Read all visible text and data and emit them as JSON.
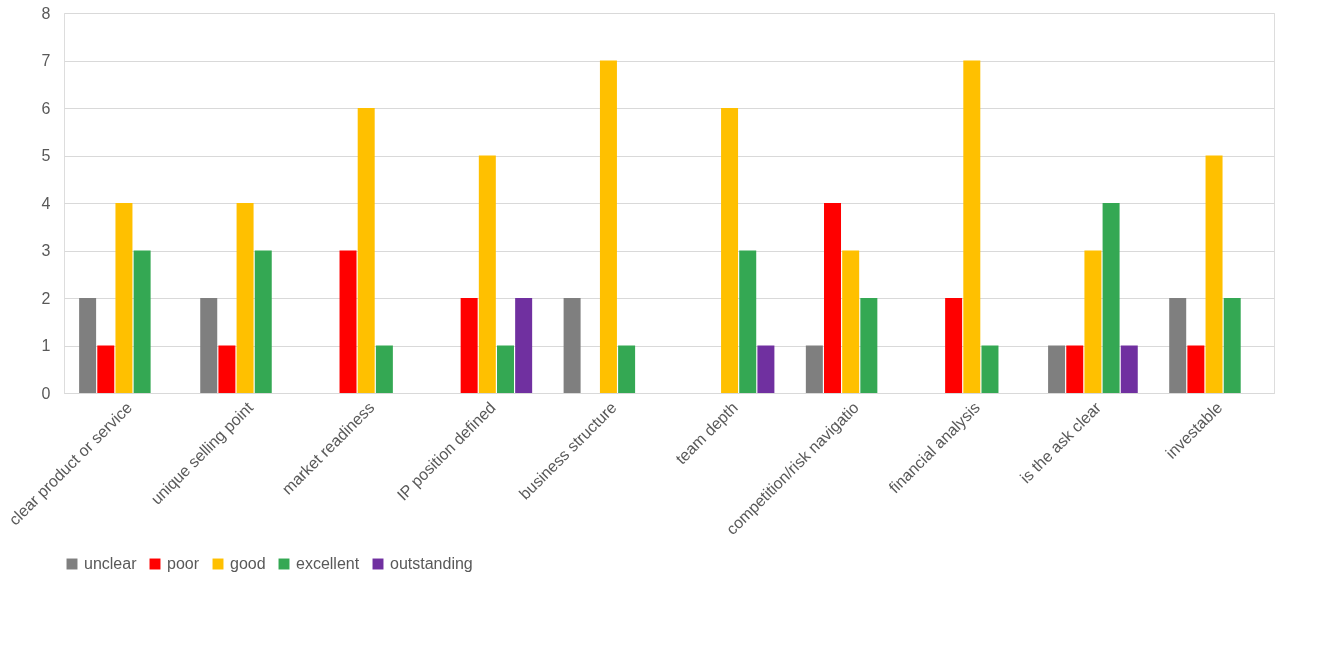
{
  "chart_data": {
    "type": "bar",
    "categories": [
      "clear product or service",
      "unique selling point",
      "market readiness",
      "IP position defined",
      "business structure",
      "team depth",
      "competition/risk navigatio",
      "financial analysis",
      "is the ask clear",
      "investable"
    ],
    "series": [
      {
        "name": "unclear",
        "color": "#7f7f7f",
        "values": [
          2,
          2,
          0,
          0,
          2,
          0,
          1,
          0,
          1,
          2
        ]
      },
      {
        "name": "poor",
        "color": "#ff0000",
        "values": [
          1,
          1,
          3,
          2,
          0,
          0,
          4,
          2,
          1,
          1
        ]
      },
      {
        "name": "good",
        "color": "#ffc000",
        "values": [
          4,
          4,
          6,
          5,
          7,
          6,
          3,
          7,
          3,
          5
        ]
      },
      {
        "name": "excellent",
        "color": "#34a853",
        "values": [
          3,
          3,
          1,
          1,
          1,
          3,
          2,
          1,
          4,
          2
        ]
      },
      {
        "name": "outstanding",
        "color": "#7030a0",
        "values": [
          0,
          0,
          0,
          2,
          0,
          1,
          0,
          0,
          1,
          0
        ]
      }
    ],
    "ylim": [
      0,
      8
    ],
    "yticks": [
      0,
      1,
      2,
      3,
      4,
      5,
      6,
      7,
      8
    ],
    "grid": "y",
    "legend": "bottom"
  }
}
